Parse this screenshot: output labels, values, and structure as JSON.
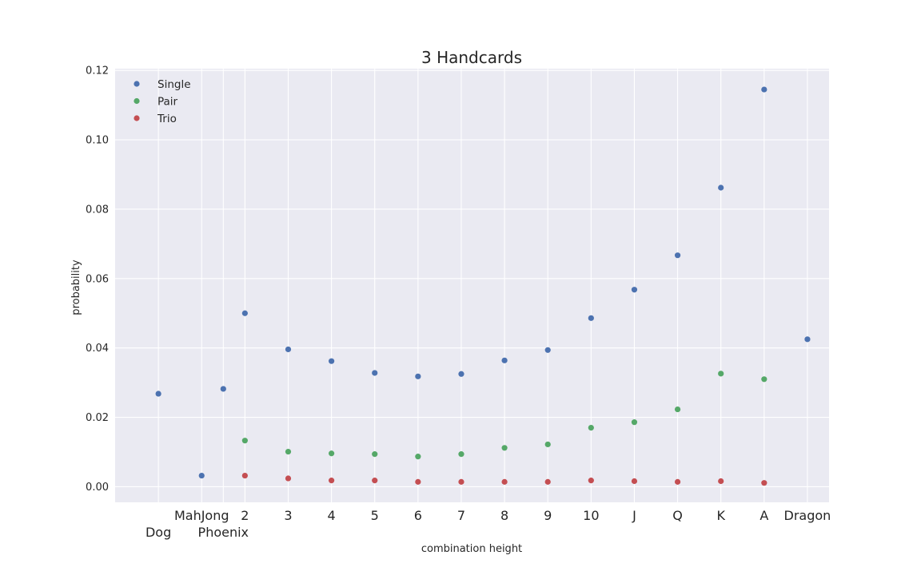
{
  "chart_data": {
    "type": "scatter",
    "title": "3 Handcards",
    "xlabel": "combination height",
    "ylabel": "probability",
    "ylim": [
      -0.0045,
      0.1205
    ],
    "yticks": [
      "0.00",
      "0.02",
      "0.04",
      "0.06",
      "0.08",
      "0.10",
      "0.12"
    ],
    "ytick_values": [
      0,
      0.02,
      0.04,
      0.06,
      0.08,
      0.1,
      0.12
    ],
    "xlim": [
      -1.0,
      15.5
    ],
    "xticks": [
      {
        "pos": 0,
        "label": "Dog",
        "row": 2
      },
      {
        "pos": 1,
        "label": "MahJong",
        "row": 1
      },
      {
        "pos": 1.5,
        "label": "Phoenix",
        "row": 2
      },
      {
        "pos": 2,
        "label": "2",
        "row": 1
      },
      {
        "pos": 3,
        "label": "3",
        "row": 1
      },
      {
        "pos": 4,
        "label": "4",
        "row": 1
      },
      {
        "pos": 5,
        "label": "5",
        "row": 1
      },
      {
        "pos": 6,
        "label": "6",
        "row": 1
      },
      {
        "pos": 7,
        "label": "7",
        "row": 1
      },
      {
        "pos": 8,
        "label": "8",
        "row": 1
      },
      {
        "pos": 9,
        "label": "9",
        "row": 1
      },
      {
        "pos": 10,
        "label": "10",
        "row": 1
      },
      {
        "pos": 11,
        "label": "J",
        "row": 1
      },
      {
        "pos": 12,
        "label": "Q",
        "row": 1
      },
      {
        "pos": 13,
        "label": "K",
        "row": 1
      },
      {
        "pos": 14,
        "label": "A",
        "row": 1
      },
      {
        "pos": 15,
        "label": "Dragon",
        "row": 1
      }
    ],
    "grid": true,
    "legend_position": "top-left",
    "series": [
      {
        "name": "Single",
        "color": "#4c72b0",
        "x": [
          0,
          1,
          1.5,
          2,
          3,
          4,
          5,
          6,
          7,
          8,
          9,
          10,
          11,
          12,
          13,
          14,
          15
        ],
        "y": [
          0.0268,
          0.0032,
          0.0282,
          0.05,
          0.0396,
          0.0362,
          0.0328,
          0.0318,
          0.0325,
          0.0364,
          0.0394,
          0.0486,
          0.0568,
          0.0667,
          0.0862,
          0.1145,
          0.0425
        ]
      },
      {
        "name": "Pair",
        "color": "#55a868",
        "x": [
          2,
          3,
          4,
          5,
          6,
          7,
          8,
          9,
          10,
          11,
          12,
          13,
          14
        ],
        "y": [
          0.0133,
          0.0101,
          0.0096,
          0.0094,
          0.0087,
          0.0094,
          0.0112,
          0.0122,
          0.017,
          0.0186,
          0.0223,
          0.0326,
          0.031
        ]
      },
      {
        "name": "Trio",
        "color": "#c44e52",
        "x": [
          2,
          3,
          4,
          5,
          6,
          7,
          8,
          9,
          10,
          11,
          12,
          13,
          14
        ],
        "y": [
          0.0032,
          0.0024,
          0.0018,
          0.0018,
          0.0014,
          0.0014,
          0.0014,
          0.0014,
          0.0018,
          0.0016,
          0.0014,
          0.0016,
          0.0011
        ]
      }
    ]
  }
}
